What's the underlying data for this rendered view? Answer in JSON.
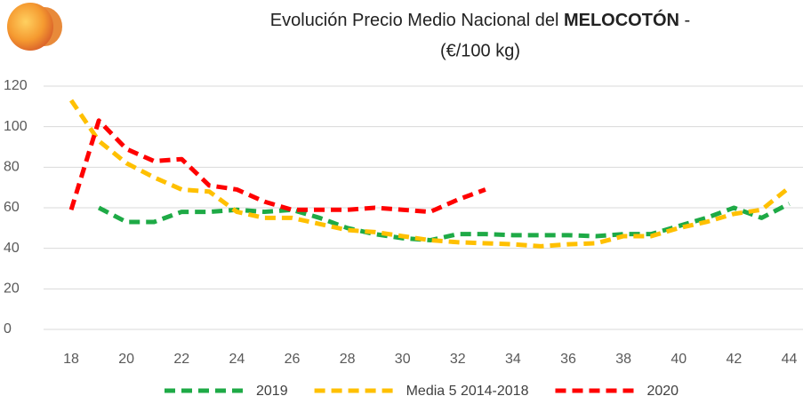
{
  "chart_data": {
    "type": "line",
    "title": {
      "prefix": "Evolución Precio Medio Nacional del",
      "bold": "MELOCOTÓN",
      "suffix": "-",
      "line2": "(€/100 kg)"
    },
    "x": [
      18,
      19,
      20,
      21,
      22,
      23,
      24,
      25,
      26,
      27,
      28,
      29,
      30,
      31,
      32,
      33,
      34,
      35,
      36,
      37,
      38,
      39,
      40,
      41,
      42,
      43,
      44
    ],
    "series": [
      {
        "name": "2019",
        "color": "#1eaa46",
        "values": [
          null,
          60,
          53,
          53,
          58,
          58,
          59,
          58,
          59,
          55,
          50,
          47,
          45,
          44,
          47,
          47,
          46.5,
          46.5,
          46.5,
          46,
          47,
          47,
          51,
          55,
          60,
          55,
          62
        ]
      },
      {
        "name": "Media 5 2014-2018",
        "color": "#ffc000",
        "values": [
          113,
          93,
          82,
          75,
          69,
          68,
          58,
          55,
          55,
          52,
          49,
          48,
          46,
          44,
          43,
          42.5,
          42,
          41,
          42,
          42.5,
          46,
          46,
          50,
          53,
          57,
          59,
          70
        ]
      },
      {
        "name": "2020",
        "color": "#ff0000",
        "values": [
          59,
          103,
          89,
          83,
          84,
          71,
          69,
          63,
          59,
          59,
          59,
          60,
          59,
          58,
          64,
          69,
          null,
          null,
          null,
          null,
          null,
          null,
          null,
          null,
          null,
          null,
          null
        ]
      }
    ],
    "xlim": [
      17,
      44.5
    ],
    "xticks": [
      18,
      20,
      22,
      24,
      26,
      28,
      30,
      32,
      34,
      36,
      38,
      40,
      42,
      44
    ],
    "ylim": [
      0,
      120
    ],
    "yticks": [
      0,
      20,
      40,
      60,
      80,
      100,
      120
    ],
    "grid": true,
    "legend": "bottom"
  }
}
